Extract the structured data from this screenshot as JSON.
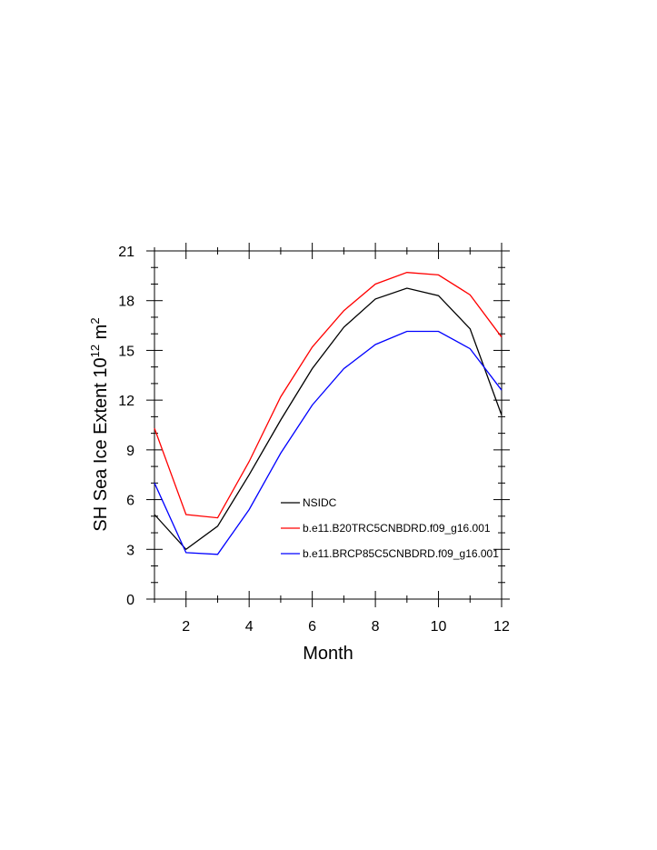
{
  "chart_data": {
    "type": "line",
    "xlabel": "Month",
    "ylabel": "SH Sea Ice Extent 10",
    "ylabel_exp": "12",
    "ylabel_unit": " m",
    "ylabel_unit_exp": "2",
    "xlim": [
      1,
      12
    ],
    "ylim": [
      0,
      21
    ],
    "xticks": [
      2,
      4,
      6,
      8,
      10,
      12
    ],
    "yticks": [
      0,
      3,
      6,
      9,
      12,
      15,
      18,
      21
    ],
    "grid": false,
    "legend_position": "lower-right",
    "x": [
      1,
      2,
      3,
      4,
      5,
      6,
      7,
      8,
      9,
      10,
      11,
      12
    ],
    "series": [
      {
        "name": "NSIDC",
        "color": "#000000",
        "values": [
          5.1,
          3.0,
          4.4,
          7.5,
          10.8,
          13.9,
          16.4,
          18.1,
          18.75,
          18.3,
          16.3,
          11.1
        ]
      },
      {
        "name": "b.e11.B20TRC5CNBDRD.f09_g16.001",
        "color": "#ff0000",
        "values": [
          10.3,
          5.1,
          4.9,
          8.3,
          12.2,
          15.2,
          17.4,
          19.0,
          19.7,
          19.55,
          18.35,
          15.8
        ]
      },
      {
        "name": "b.e11.BRCP85C5CNBDRD.f09_g16.001",
        "color": "#0000ff",
        "values": [
          7.0,
          2.8,
          2.7,
          5.4,
          8.8,
          11.7,
          13.9,
          15.35,
          16.15,
          16.15,
          15.1,
          12.6
        ]
      }
    ]
  }
}
